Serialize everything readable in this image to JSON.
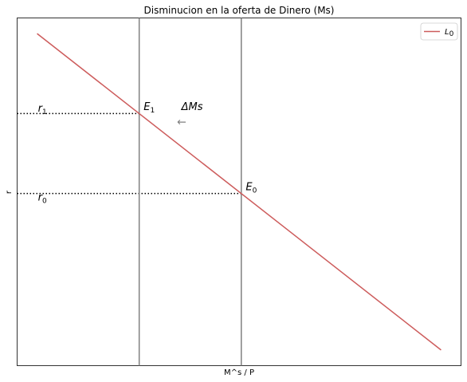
{
  "chart_data": {
    "type": "line",
    "title": "Disminucion en la oferta de Dinero (Ms)",
    "xlabel": "M^s / P",
    "ylabel": "r",
    "xlim": [
      0,
      100
    ],
    "ylim": [
      0,
      100
    ],
    "grid": false,
    "legend": {
      "placement": "top-right",
      "entries": [
        {
          "label": "L",
          "sub": "0",
          "color": "#cd5c5c"
        }
      ]
    },
    "series": [
      {
        "name": "L0",
        "color": "#cd5c5c",
        "x": [
          4.5,
          95.5
        ],
        "y": [
          95.5,
          4.5
        ]
      }
    ],
    "vertical_lines": [
      {
        "x": 27.5,
        "color": "#808080"
      },
      {
        "x": 50.5,
        "color": "#808080"
      }
    ],
    "horizontal_dotted": [
      {
        "y": 72.5,
        "x_end": 27.5
      },
      {
        "y": 49.5,
        "x_end": 50.5
      }
    ],
    "annotations": [
      {
        "id": "r1",
        "base": "r",
        "sub": "1",
        "x": 4.7,
        "y": 73.0
      },
      {
        "id": "r0",
        "base": "r",
        "sub": "0",
        "x": 4.7,
        "y": 47.5
      },
      {
        "id": "E1",
        "base": "E",
        "sub": "1",
        "x": 28.5,
        "y": 73.5
      },
      {
        "id": "E0",
        "base": "E",
        "sub": "0",
        "x": 51.5,
        "y": 50.5
      },
      {
        "id": "dMs",
        "base": "ΔMs",
        "sub": "",
        "x": 37.0,
        "y": 73.5
      }
    ],
    "arrow": {
      "glyph": "←",
      "x": 36.0,
      "y": 69.0,
      "color": "#808080"
    }
  }
}
